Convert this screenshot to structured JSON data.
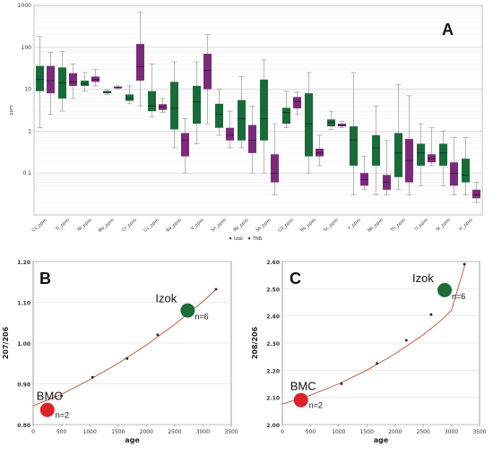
{
  "colors": {
    "izok": "#1b6a3a",
    "tnb": "#7b2a7a",
    "curve": "#b5543a",
    "bmc_dot": "#d8232a",
    "izok_dot": "#1e6b36"
  },
  "chart_data": [
    {
      "panel": "A",
      "type": "box",
      "ylabel": "ppm",
      "yscale": "log",
      "ylim": [
        0.01,
        1000
      ],
      "yticks": [
        "0.1",
        "1",
        "10",
        "100",
        "1000"
      ],
      "legend": [
        "Izok",
        "TNB"
      ],
      "legend_position": "bottom-center",
      "categories": [
        "Co_ppm",
        "Ti_ppm",
        "Ni_ppm",
        "Mo_ppm",
        "Cr_ppm",
        "Cu_ppm",
        "Ba_ppm",
        "V_ppm",
        "Sn_ppm",
        "Pb_ppm",
        "Sb_ppm",
        "Cd_ppm",
        "Rb_ppm",
        "Sc_ppm",
        "Y_ppm",
        "Nb_ppm",
        "Th_ppm",
        "U_ppm",
        "Sr_ppm",
        "In_ppm"
      ],
      "series": [
        {
          "name": "Izok",
          "boxes": [
            [
              1.2,
              9,
              17,
              36,
              180
            ],
            [
              3,
              6,
              14,
              33,
              80
            ],
            [
              9,
              12,
              13.5,
              16,
              25
            ],
            [
              7.5,
              8,
              8.5,
              9,
              9.5
            ],
            [
              4.5,
              5.3,
              6,
              7.5,
              12
            ],
            [
              2.2,
              3,
              4,
              9,
              40
            ],
            [
              0.4,
              1.1,
              3.5,
              15,
              45
            ],
            [
              0.5,
              1.5,
              5,
              12,
              45
            ],
            [
              0.8,
              1.2,
              2.5,
              4.5,
              10
            ],
            [
              0.4,
              0.6,
              2,
              5.5,
              20
            ],
            [
              0.1,
              0.6,
              2,
              17,
              50
            ],
            [
              1.2,
              1.5,
              2.8,
              3.6,
              9
            ],
            [
              0.1,
              0.25,
              1.5,
              8,
              25
            ],
            [
              1.1,
              1.3,
              1.6,
              1.9,
              3
            ],
            [
              0.03,
              0.15,
              0.6,
              1.3,
              25
            ],
            [
              0.03,
              0.15,
              0.4,
              0.8,
              4
            ],
            [
              0.04,
              0.08,
              0.3,
              0.9,
              13
            ],
            [
              0.05,
              0.15,
              0.3,
              0.5,
              1.5
            ],
            [
              0.05,
              0.15,
              0.3,
              0.5,
              1
            ],
            [
              0.03,
              0.06,
              0.09,
              0.22,
              0.7
            ]
          ]
        },
        {
          "name": "TNB",
          "boxes": [
            [
              2.5,
              8,
              16,
              36,
              75
            ],
            [
              6,
              12,
              15,
              24,
              40
            ],
            [
              12,
              15,
              17,
              20,
              30
            ],
            [
              10,
              10.5,
              11,
              11.5,
              12
            ],
            [
              4,
              16,
              35,
              120,
              700
            ],
            [
              2.8,
              3.2,
              3.8,
              4.4,
              6
            ],
            [
              0.1,
              0.25,
              0.6,
              0.9,
              2
            ],
            [
              1.5,
              10,
              28,
              70,
              200
            ],
            [
              0.4,
              0.6,
              0.8,
              1.2,
              3
            ],
            [
              0.1,
              0.3,
              0.6,
              1.4,
              4
            ],
            [
              0.03,
              0.06,
              0.1,
              0.28,
              1.5
            ],
            [
              2.5,
              3.5,
              5,
              6.5,
              8.5
            ],
            [
              0.15,
              0.25,
              0.3,
              0.38,
              0.8
            ],
            [
              1.2,
              1.3,
              1.4,
              1.5,
              1.7
            ],
            [
              0.04,
              0.05,
              0.07,
              0.1,
              0.25
            ],
            [
              0.03,
              0.04,
              0.06,
              0.09,
              0.6
            ],
            [
              0.03,
              0.06,
              0.2,
              0.65,
              7
            ],
            [
              0.15,
              0.18,
              0.22,
              0.28,
              1.2
            ],
            [
              0.03,
              0.05,
              0.1,
              0.18,
              0.7
            ],
            [
              0.02,
              0.025,
              0.03,
              0.04,
              0.06
            ]
          ]
        }
      ]
    },
    {
      "panel": "B",
      "type": "scatter",
      "xlabel": "age",
      "ylabel": "207/206",
      "xlim": [
        0,
        3500
      ],
      "ylim": [
        0.8,
        1.2
      ],
      "xticks": [
        "0",
        "500",
        "1000",
        "1500",
        "2000",
        "2500",
        "3000",
        "3500"
      ],
      "yticks": [
        "0.80",
        "0.90",
        "1.00",
        "1.10",
        "1.20"
      ],
      "curve": [
        [
          0,
          0.846
        ],
        [
          500,
          0.874
        ],
        [
          1000,
          0.91
        ],
        [
          1500,
          0.95
        ],
        [
          2000,
          0.995
        ],
        [
          2500,
          1.046
        ],
        [
          3000,
          1.102
        ],
        [
          3250,
          1.134
        ]
      ],
      "points": [
        [
          500,
          0.87
        ],
        [
          1050,
          0.916
        ],
        [
          1660,
          0.962
        ],
        [
          2200,
          1.02
        ],
        [
          2750,
          1.085
        ],
        [
          3230,
          1.132
        ]
      ],
      "labels": [
        {
          "text": "BMC",
          "x": 250,
          "y": 0.836,
          "n": "n=2",
          "color": "bmc_dot"
        },
        {
          "text": "Izok",
          "x": 2730,
          "y": 1.08,
          "n": "n=6",
          "color": "izok_dot"
        }
      ]
    },
    {
      "panel": "C",
      "type": "scatter",
      "xlabel": "age",
      "ylabel": "208/206",
      "xlim": [
        0,
        3500
      ],
      "ylim": [
        2.0,
        2.6
      ],
      "xticks": [
        "0",
        "500",
        "1000",
        "1500",
        "2000",
        "2500",
        "3000",
        "3500"
      ],
      "yticks": [
        "2.00",
        "2.10",
        "2.20",
        "2.30",
        "2.40",
        "2.50",
        "2.60"
      ],
      "curve": [
        [
          0,
          2.075
        ],
        [
          500,
          2.108
        ],
        [
          1000,
          2.15
        ],
        [
          1500,
          2.2
        ],
        [
          2000,
          2.26
        ],
        [
          2500,
          2.33
        ],
        [
          2800,
          2.38
        ],
        [
          3000,
          2.42
        ],
        [
          3250,
          2.595
        ]
      ],
      "points": [
        [
          350,
          2.095
        ],
        [
          1050,
          2.15
        ],
        [
          1680,
          2.225
        ],
        [
          2200,
          2.31
        ],
        [
          2640,
          2.405
        ],
        [
          3230,
          2.59
        ]
      ],
      "labels": [
        {
          "text": "BMC",
          "x": 330,
          "y": 2.09,
          "n": "n=2",
          "color": "bmc_dot"
        },
        {
          "text": "Izok",
          "x": 2880,
          "y": 2.495,
          "n": "n=6",
          "color": "izok_dot"
        }
      ]
    }
  ]
}
